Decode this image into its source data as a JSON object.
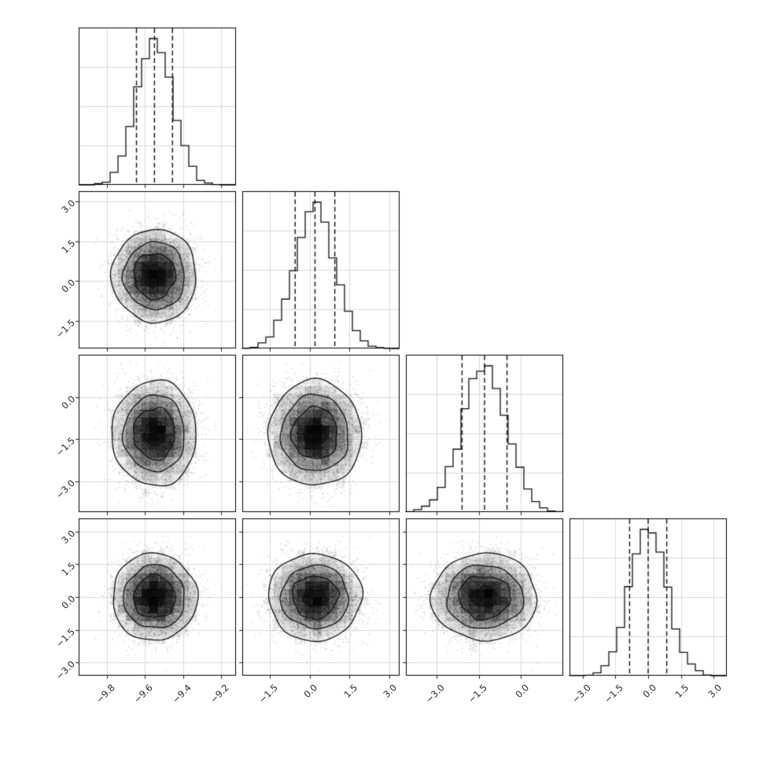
{
  "figure": {
    "kind": "corner-plot",
    "background_color": "#ffffff",
    "n_parameters": 4,
    "layout_note": "lower-triangle grid: 1D histograms on the diagonal, 2D scatter+density+contour panels below"
  },
  "chart_data": {
    "type": "corner",
    "panel_types": [
      "histogram",
      "scatter-contour"
    ],
    "title": "",
    "n_samples": 5000,
    "quantile_fractions": [
      0.16,
      0.5,
      0.84
    ],
    "histogram": {
      "bins": 20,
      "line_color": "#111111"
    },
    "density": {
      "bins2d": 20,
      "max_alpha": 0.92
    },
    "scatter": {
      "point_color": "#000000",
      "point_alpha": 0.16,
      "point_size": 1.5
    },
    "contours": {
      "sigma_levels": [
        2.35,
        1.7,
        1.15,
        0.55
      ],
      "fill_alphas": [
        0.05,
        0.1,
        0.17,
        0.26
      ],
      "wobble": [
        0.045,
        0.06,
        0.09,
        0.16
      ],
      "line_color": "#111111"
    },
    "grid_color": "#d9d9d9",
    "frame_color": "#000000",
    "tick_label_rotation_deg": 45,
    "parameters": [
      {
        "id": "param-1",
        "mean": -9.55,
        "sigma": 0.095,
        "range": [
          -9.95,
          -9.12
        ],
        "ticks": [
          -9.8,
          -9.6,
          -9.4,
          -9.2
        ],
        "tick_labels": [
          "−9.8",
          "−9.6",
          "−9.4",
          "−9.2"
        ],
        "quantiles": [
          -9.645,
          -9.55,
          -9.455
        ]
      },
      {
        "id": "param-2",
        "mean": 0.2,
        "sigma": 0.75,
        "range": [
          -2.55,
          3.4
        ],
        "ticks": [
          -1.5,
          0.0,
          1.5,
          3.0
        ],
        "tick_labels": [
          "−1.5",
          "0.0",
          "1.5",
          "3.0"
        ],
        "quantiles": [
          -0.55,
          0.2,
          0.95
        ]
      },
      {
        "id": "param-3",
        "mean": -1.3,
        "sigma": 0.8,
        "range": [
          -4.1,
          1.5
        ],
        "ticks": [
          -3.0,
          -1.5,
          0.0
        ],
        "tick_labels": [
          "−3.0",
          "−1.5",
          "0.0"
        ],
        "quantiles": [
          -2.1,
          -1.3,
          -0.5
        ]
      },
      {
        "id": "param-4",
        "mean": 0.0,
        "sigma": 0.85,
        "range": [
          -3.6,
          3.6
        ],
        "ticks": [
          -3.0,
          -1.5,
          0.0,
          1.5,
          3.0
        ],
        "tick_labels": [
          "−3.0",
          "−1.5",
          "0.0",
          "1.5",
          "3.0"
        ],
        "quantiles": [
          -0.85,
          0.0,
          0.85
        ]
      }
    ]
  }
}
